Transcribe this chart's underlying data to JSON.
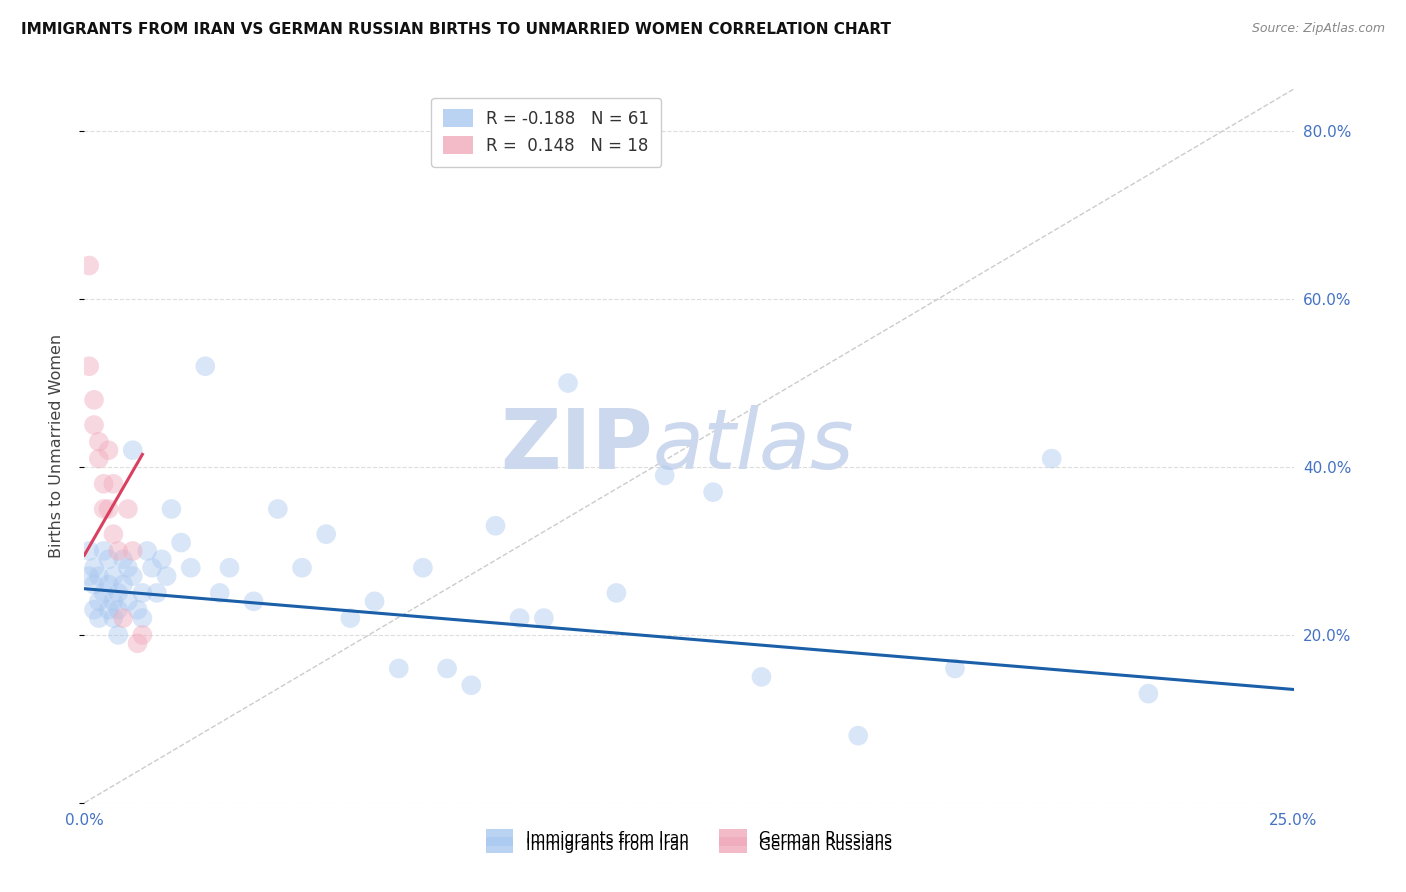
{
  "title": "IMMIGRANTS FROM IRAN VS GERMAN RUSSIAN BIRTHS TO UNMARRIED WOMEN CORRELATION CHART",
  "source": "Source: ZipAtlas.com",
  "ylabel": "Births to Unmarried Women",
  "x_min": 0.0,
  "x_max": 0.25,
  "y_min": 0.0,
  "y_max": 0.85,
  "y_ticks": [
    0.0,
    0.2,
    0.4,
    0.6,
    0.8
  ],
  "y_tick_labels": [
    "",
    "20.0%",
    "40.0%",
    "60.0%",
    "80.0%"
  ],
  "x_ticks": [
    0.0,
    0.05,
    0.1,
    0.15,
    0.2,
    0.25
  ],
  "x_tick_labels": [
    "0.0%",
    "",
    "",
    "",
    "",
    "25.0%"
  ],
  "blue_scatter_x": [
    0.001,
    0.001,
    0.002,
    0.002,
    0.002,
    0.003,
    0.003,
    0.003,
    0.004,
    0.004,
    0.005,
    0.005,
    0.005,
    0.006,
    0.006,
    0.006,
    0.007,
    0.007,
    0.007,
    0.008,
    0.008,
    0.009,
    0.009,
    0.01,
    0.01,
    0.011,
    0.012,
    0.012,
    0.013,
    0.014,
    0.015,
    0.016,
    0.017,
    0.018,
    0.02,
    0.022,
    0.025,
    0.028,
    0.03,
    0.035,
    0.04,
    0.045,
    0.05,
    0.055,
    0.06,
    0.065,
    0.07,
    0.075,
    0.08,
    0.085,
    0.09,
    0.095,
    0.1,
    0.11,
    0.12,
    0.13,
    0.14,
    0.16,
    0.18,
    0.2,
    0.22
  ],
  "blue_scatter_y": [
    0.27,
    0.3,
    0.26,
    0.23,
    0.28,
    0.24,
    0.27,
    0.22,
    0.25,
    0.3,
    0.26,
    0.29,
    0.23,
    0.24,
    0.27,
    0.22,
    0.25,
    0.23,
    0.2,
    0.26,
    0.29,
    0.24,
    0.28,
    0.42,
    0.27,
    0.23,
    0.25,
    0.22,
    0.3,
    0.28,
    0.25,
    0.29,
    0.27,
    0.35,
    0.31,
    0.28,
    0.52,
    0.25,
    0.28,
    0.24,
    0.35,
    0.28,
    0.32,
    0.22,
    0.24,
    0.16,
    0.28,
    0.16,
    0.14,
    0.33,
    0.22,
    0.22,
    0.5,
    0.25,
    0.39,
    0.37,
    0.15,
    0.08,
    0.16,
    0.41,
    0.13
  ],
  "pink_scatter_x": [
    0.001,
    0.001,
    0.002,
    0.002,
    0.003,
    0.003,
    0.004,
    0.004,
    0.005,
    0.005,
    0.006,
    0.006,
    0.007,
    0.008,
    0.009,
    0.01,
    0.011,
    0.012
  ],
  "pink_scatter_y": [
    0.64,
    0.52,
    0.48,
    0.45,
    0.43,
    0.41,
    0.38,
    0.35,
    0.42,
    0.35,
    0.32,
    0.38,
    0.3,
    0.22,
    0.35,
    0.3,
    0.19,
    0.2
  ],
  "blue_line_x": [
    0.0,
    0.25
  ],
  "blue_line_y": [
    0.255,
    0.135
  ],
  "pink_line_x": [
    0.0,
    0.012
  ],
  "pink_line_y": [
    0.295,
    0.415
  ],
  "ref_line_x": [
    0.0,
    0.25
  ],
  "ref_line_y": [
    0.0,
    0.85
  ],
  "scatter_size": 200,
  "scatter_alpha": 0.45,
  "blue_color": "#aac8f0",
  "pink_color": "#f0aabb",
  "blue_line_color": "#1a5fa8",
  "pink_line_color": "#d94060",
  "ref_line_color": "#cccccc",
  "grid_color": "#dddddd",
  "title_color": "#111111",
  "axis_label_color": "#444444",
  "tick_color": "#4472c4",
  "watermark_zip": "ZIP",
  "watermark_atlas": "atlas",
  "watermark_color": "#ccd8ee",
  "watermark_fontsize": 60
}
